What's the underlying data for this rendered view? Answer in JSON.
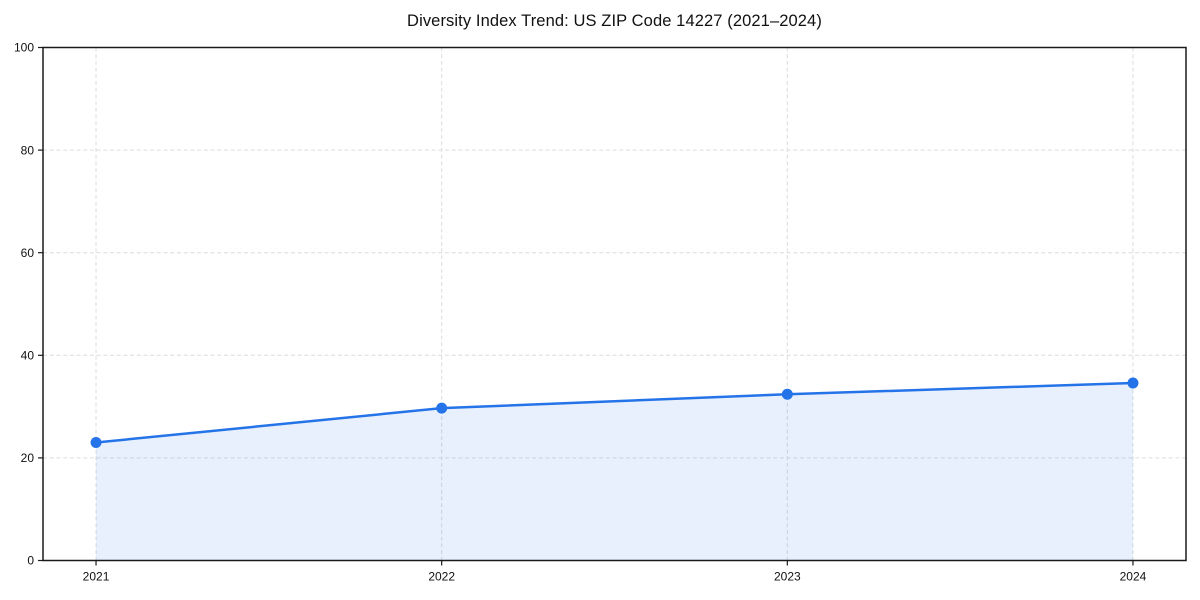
{
  "chart_data": {
    "type": "area",
    "title": "Diversity Index Trend: US ZIP Code 14227 (2021–2024)",
    "categories": [
      "2021",
      "2022",
      "2023",
      "2024"
    ],
    "series": [
      {
        "name": "Diversity Index",
        "values": [
          23.0,
          29.7,
          32.4,
          34.6
        ]
      }
    ],
    "xlabel": "",
    "ylabel": "",
    "ylim": [
      0,
      100
    ],
    "yticks": [
      0,
      20,
      40,
      60,
      80,
      100
    ],
    "grid": "dashed",
    "legend": "none",
    "fill_opacity": 0.11,
    "colors": {
      "line": "#2573e8",
      "marker": "#2573e8",
      "fill": "#2573e8",
      "gridline": "#dcdcdc",
      "spine": "#1a1a1a",
      "tick_label": "#111111",
      "title": "#111111",
      "background": "#ffffff"
    }
  }
}
